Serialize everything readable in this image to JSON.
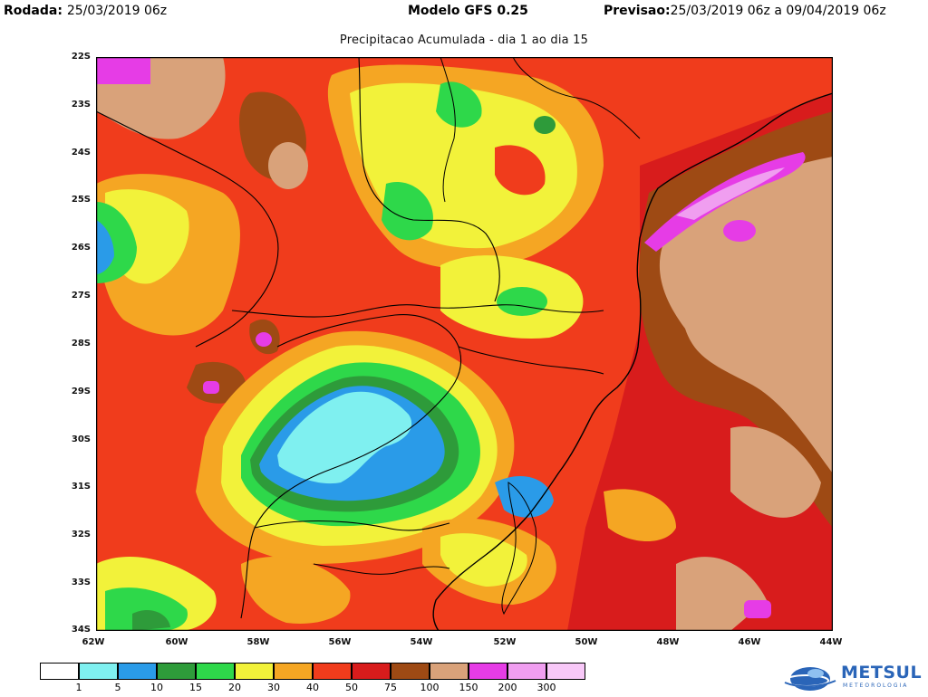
{
  "header": {
    "left_label": "Rodada:",
    "left_value": "25/03/2019 06z",
    "center": "Modelo GFS 0.25",
    "right_label": "Previsao:",
    "right_value": "25/03/2019 06z a 09/04/2019 06z"
  },
  "subtitle": "Precipitacao Acumulada - dia 1 ao dia 15",
  "map": {
    "lat_labels": [
      "22S",
      "23S",
      "24S",
      "25S",
      "26S",
      "27S",
      "28S",
      "29S",
      "30S",
      "31S",
      "32S",
      "33S",
      "34S"
    ],
    "lon_labels": [
      "62W",
      "60W",
      "58W",
      "56W",
      "54W",
      "52W",
      "50W",
      "48W",
      "46W",
      "44W"
    ]
  },
  "legend": {
    "labels": [
      "1",
      "5",
      "10",
      "15",
      "20",
      "30",
      "40",
      "50",
      "75",
      "100",
      "150",
      "200",
      "300"
    ],
    "colors": [
      "#ffffff",
      "#7ff0f0",
      "#2a9be8",
      "#2e9b3a",
      "#2ed84a",
      "#f2f23a",
      "#f5a623",
      "#f03c1c",
      "#d81c1c",
      "#9e4a14",
      "#d9a27a",
      "#e63ce6",
      "#f09ef0",
      "#f8c8f8"
    ]
  },
  "logo": {
    "name": "METSUL",
    "tagline": "METEOROLOGIA"
  },
  "colors": {
    "heavy_red": "#d81c1c",
    "brown": "#9e4a14",
    "tan": "#d9a27a",
    "blue": "#2a9be8",
    "cyan": "#7ff0f0"
  }
}
